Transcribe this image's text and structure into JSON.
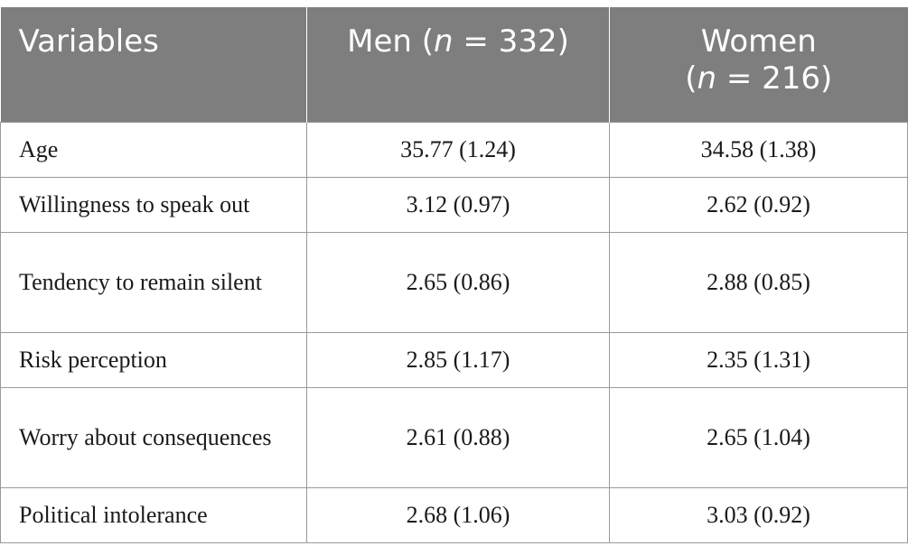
{
  "table": {
    "headers": {
      "variables": "Variables",
      "men_group": "Men (",
      "men_n_symbol": "n",
      "men_count": " = 332)",
      "women_group": "Women",
      "women_paren_open": "(",
      "women_n_symbol": "n",
      "women_count": " = 216)"
    },
    "rows": [
      {
        "label": "Age",
        "men": "35.77 (1.24)",
        "women": "34.58 (1.38)"
      },
      {
        "label": "Willingness to speak out",
        "men": "3.12 (0.97)",
        "women": "2.62 (0.92)"
      },
      {
        "label": "Tendency to remain silent",
        "men": "2.65 (0.86)",
        "women": "2.88 (0.85)"
      },
      {
        "label": "Risk perception",
        "men": "2.85 (1.17)",
        "women": "2.35 (1.31)"
      },
      {
        "label": "Worry about consequences",
        "men": "2.61 (0.88)",
        "women": "2.65 (1.04)"
      },
      {
        "label": "Political intolerance",
        "men": "2.68 (1.06)",
        "women": "3.03 (0.92)"
      }
    ]
  }
}
